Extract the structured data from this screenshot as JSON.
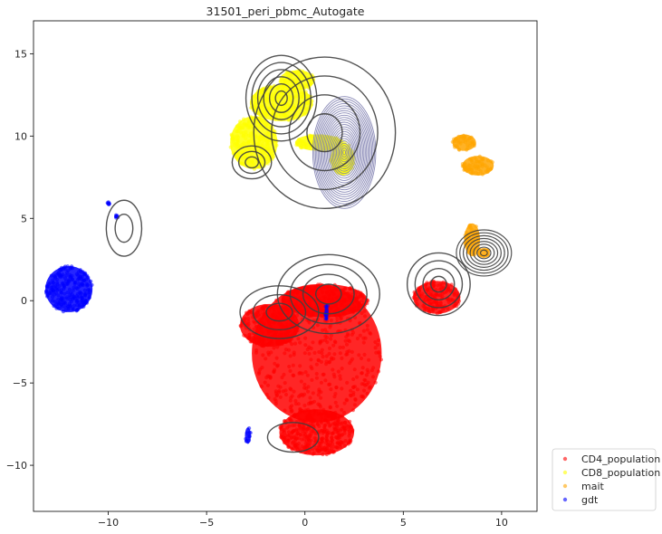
{
  "chart_data": {
    "type": "scatter",
    "title": "31501_peri_pbmc_Autogate",
    "xlabel": "",
    "ylabel": "",
    "xlim": [
      -13.8,
      11.8
    ],
    "ylim": [
      -12.8,
      17.0
    ],
    "xticks": [
      -10,
      -5,
      0,
      5,
      10
    ],
    "yticks": [
      -10,
      -5,
      0,
      5,
      10,
      15
    ],
    "xtick_labels": [
      "−10",
      "−5",
      "0",
      "5",
      "10"
    ],
    "ytick_labels": [
      "−10",
      "−5",
      "0",
      "5",
      "10",
      "15"
    ],
    "grid": false,
    "legend_position": "outside-bottom-right",
    "series": [
      {
        "name": "CD4_population",
        "color": "#ff0000",
        "clusters": [
          {
            "cx": 0.6,
            "cy": -3.2,
            "rx": 3.3,
            "ry": 4.2
          },
          {
            "cx": 1.0,
            "cy": 0.0,
            "rx": 2.2,
            "ry": 1.0
          },
          {
            "cx": -1.8,
            "cy": -1.5,
            "rx": 1.5,
            "ry": 1.3
          },
          {
            "cx": 0.6,
            "cy": -8.0,
            "rx": 1.9,
            "ry": 1.4
          },
          {
            "cx": 6.7,
            "cy": 0.2,
            "rx": 1.2,
            "ry": 1.0
          }
        ]
      },
      {
        "name": "CD8_population",
        "color": "#ffff00",
        "clusters": [
          {
            "cx": -2.6,
            "cy": 9.6,
            "rx": 1.2,
            "ry": 1.6
          },
          {
            "cx": -1.2,
            "cy": 12.0,
            "rx": 1.6,
            "ry": 1.1
          },
          {
            "cx": -0.4,
            "cy": 13.4,
            "rx": 0.9,
            "ry": 0.6
          },
          {
            "cx": 0.7,
            "cy": 9.6,
            "rx": 1.2,
            "ry": 0.5
          },
          {
            "cx": 1.9,
            "cy": 8.6,
            "rx": 0.6,
            "ry": 1.0
          }
        ]
      },
      {
        "name": "mait",
        "color": "#ffa500",
        "clusters": [
          {
            "cx": 8.1,
            "cy": 9.6,
            "rx": 0.6,
            "ry": 0.5
          },
          {
            "cx": 8.8,
            "cy": 8.2,
            "rx": 0.8,
            "ry": 0.6
          },
          {
            "cx": 8.5,
            "cy": 3.7,
            "rx": 0.4,
            "ry": 1.0
          },
          {
            "cx": 9.1,
            "cy": 2.9,
            "rx": 0.3,
            "ry": 0.3
          }
        ]
      },
      {
        "name": "gdt",
        "color": "#0000ff",
        "clusters": [
          {
            "cx": -12.0,
            "cy": 0.7,
            "rx": 1.2,
            "ry": 1.4
          },
          {
            "cx": -10.0,
            "cy": 5.9,
            "rx": 0.1,
            "ry": 0.1
          },
          {
            "cx": -9.6,
            "cy": 5.1,
            "rx": 0.1,
            "ry": 0.1
          },
          {
            "cx": 1.1,
            "cy": -0.7,
            "rx": 0.1,
            "ry": 0.5
          },
          {
            "cx": -2.9,
            "cy": -8.2,
            "rx": 0.15,
            "ry": 0.5
          }
        ]
      }
    ]
  }
}
